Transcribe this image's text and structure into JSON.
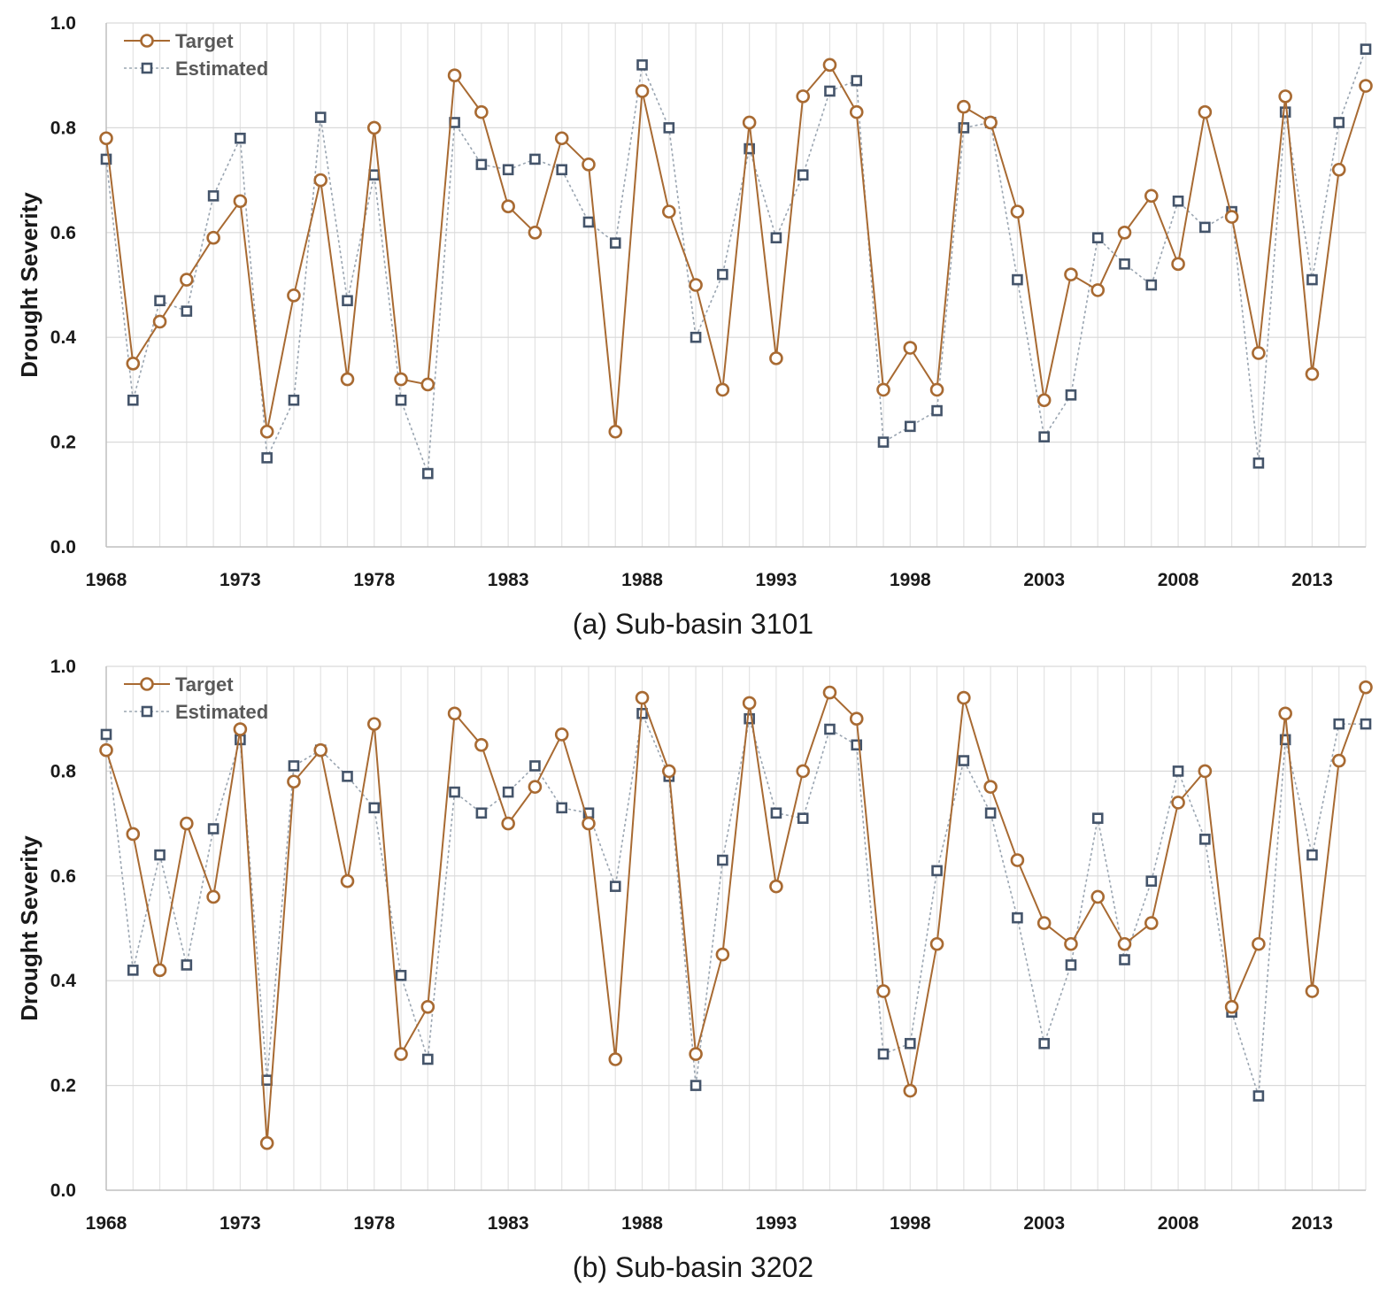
{
  "chart_data": [
    {
      "type": "line",
      "caption": "(a) Sub-basin 3101",
      "ylabel": "Drought Severity",
      "xlabel": "",
      "xlim": [
        1968,
        2015
      ],
      "ylim": [
        0,
        1
      ],
      "x_ticks": [
        1968,
        1973,
        1978,
        1983,
        1988,
        1993,
        1998,
        2003,
        2008,
        2013
      ],
      "y_ticks": [
        "0.0",
        "0.2",
        "0.4",
        "0.6",
        "0.8",
        "1.0"
      ],
      "grid": true,
      "legend": "top-left",
      "x": [
        1968,
        1969,
        1970,
        1971,
        1972,
        1973,
        1974,
        1975,
        1976,
        1977,
        1978,
        1979,
        1980,
        1981,
        1982,
        1983,
        1984,
        1985,
        1986,
        1987,
        1988,
        1989,
        1990,
        1991,
        1992,
        1993,
        1994,
        1995,
        1996,
        1997,
        1998,
        1999,
        2000,
        2001,
        2002,
        2003,
        2004,
        2005,
        2006,
        2007,
        2008,
        2009,
        2010,
        2011,
        2012,
        2013,
        2014,
        2015
      ],
      "series": [
        {
          "name": "Target",
          "color": "#a86a32",
          "marker": "circle",
          "line": "solid",
          "values": [
            0.78,
            0.35,
            0.43,
            0.51,
            0.59,
            0.66,
            0.22,
            0.48,
            0.7,
            0.32,
            0.8,
            0.32,
            0.31,
            0.9,
            0.83,
            0.65,
            0.6,
            0.78,
            0.73,
            0.22,
            0.87,
            0.64,
            0.5,
            0.3,
            0.81,
            0.36,
            0.86,
            0.92,
            0.83,
            0.3,
            0.38,
            0.3,
            0.84,
            0.81,
            0.64,
            0.28,
            0.52,
            0.49,
            0.6,
            0.67,
            0.54,
            0.83,
            0.63,
            0.37,
            0.86,
            0.33,
            0.72,
            0.88
          ]
        },
        {
          "name": "Estimated",
          "color": "#44546a",
          "marker": "square",
          "line": "dotted",
          "values": [
            0.74,
            0.28,
            0.47,
            0.45,
            0.67,
            0.78,
            0.17,
            0.28,
            0.82,
            0.47,
            0.71,
            0.28,
            0.14,
            0.81,
            0.73,
            0.72,
            0.74,
            0.72,
            0.62,
            0.58,
            0.92,
            0.8,
            0.4,
            0.52,
            0.76,
            0.59,
            0.71,
            0.87,
            0.89,
            0.2,
            0.23,
            0.26,
            0.8,
            0.81,
            0.51,
            0.21,
            0.29,
            0.59,
            0.54,
            0.5,
            0.66,
            0.61,
            0.64,
            0.16,
            0.83,
            0.51,
            0.81,
            0.95
          ]
        }
      ]
    },
    {
      "type": "line",
      "caption": "(b) Sub-basin 3202",
      "ylabel": "Drought Severity",
      "xlabel": "",
      "xlim": [
        1968,
        2015
      ],
      "ylim": [
        0,
        1
      ],
      "x_ticks": [
        1968,
        1973,
        1978,
        1983,
        1988,
        1993,
        1998,
        2003,
        2008,
        2013
      ],
      "y_ticks": [
        "0.0",
        "0.2",
        "0.4",
        "0.6",
        "0.8",
        "1.0"
      ],
      "grid": true,
      "legend": "top-left",
      "x": [
        1968,
        1969,
        1970,
        1971,
        1972,
        1973,
        1974,
        1975,
        1976,
        1977,
        1978,
        1979,
        1980,
        1981,
        1982,
        1983,
        1984,
        1985,
        1986,
        1987,
        1988,
        1989,
        1990,
        1991,
        1992,
        1993,
        1994,
        1995,
        1996,
        1997,
        1998,
        1999,
        2000,
        2001,
        2002,
        2003,
        2004,
        2005,
        2006,
        2007,
        2008,
        2009,
        2010,
        2011,
        2012,
        2013,
        2014,
        2015
      ],
      "series": [
        {
          "name": "Target",
          "color": "#a86a32",
          "marker": "circle",
          "line": "solid",
          "values": [
            0.84,
            0.68,
            0.42,
            0.7,
            0.56,
            0.88,
            0.09,
            0.78,
            0.84,
            0.59,
            0.89,
            0.26,
            0.35,
            0.91,
            0.85,
            0.7,
            0.77,
            0.87,
            0.7,
            0.25,
            0.94,
            0.8,
            0.26,
            0.45,
            0.93,
            0.58,
            0.8,
            0.95,
            0.9,
            0.38,
            0.19,
            0.47,
            0.94,
            0.77,
            0.63,
            0.51,
            0.47,
            0.56,
            0.47,
            0.51,
            0.74,
            0.8,
            0.35,
            0.47,
            0.91,
            0.38,
            0.82,
            0.96
          ]
        },
        {
          "name": "Estimated",
          "color": "#44546a",
          "marker": "square",
          "line": "dotted",
          "values": [
            0.87,
            0.42,
            0.64,
            0.43,
            0.69,
            0.86,
            0.21,
            0.81,
            0.84,
            0.79,
            0.73,
            0.41,
            0.25,
            0.76,
            0.72,
            0.76,
            0.81,
            0.73,
            0.72,
            0.58,
            0.91,
            0.79,
            0.2,
            0.63,
            0.9,
            0.72,
            0.71,
            0.88,
            0.85,
            0.26,
            0.28,
            0.61,
            0.82,
            0.72,
            0.52,
            0.28,
            0.43,
            0.71,
            0.44,
            0.59,
            0.8,
            0.67,
            0.34,
            0.18,
            0.86,
            0.64,
            0.89,
            0.89
          ]
        }
      ]
    }
  ]
}
